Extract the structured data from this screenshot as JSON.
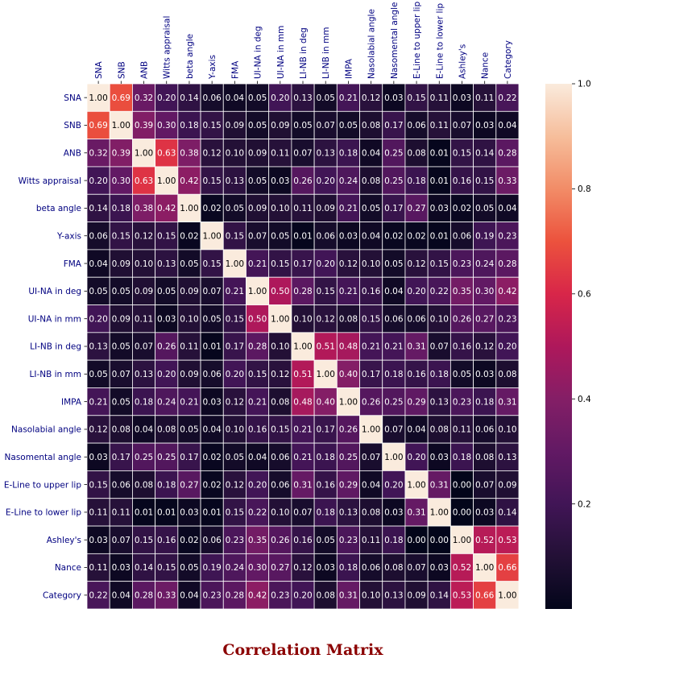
{
  "chart_data": {
    "type": "heatmap",
    "title": "Correlation Matrix",
    "labels": [
      "SNA",
      "SNB",
      "ANB",
      "Witts appraisal",
      "beta angle",
      "Y-axis",
      "FMA",
      "UI-NA in deg",
      "UI-NA in mm",
      "LI-NB in deg",
      "LI-NB in mm",
      "IMPA",
      "Nasolabial angle",
      "Nasomental angle",
      "E-Line to upper lip",
      "E-Line to lower lip",
      "Ashley's",
      "Nance",
      "Category"
    ],
    "matrix": [
      [
        1.0,
        0.69,
        0.32,
        0.2,
        0.14,
        0.06,
        0.04,
        0.05,
        0.2,
        0.13,
        0.05,
        0.21,
        0.12,
        0.03,
        0.15,
        0.11,
        0.03,
        0.11,
        0.22
      ],
      [
        0.69,
        1.0,
        0.39,
        0.3,
        0.18,
        0.15,
        0.09,
        0.05,
        0.09,
        0.05,
        0.07,
        0.05,
        0.08,
        0.17,
        0.06,
        0.11,
        0.07,
        0.03,
        0.04
      ],
      [
        0.32,
        0.39,
        1.0,
        0.63,
        0.38,
        0.12,
        0.1,
        0.09,
        0.11,
        0.07,
        0.13,
        0.18,
        0.04,
        0.25,
        0.08,
        0.01,
        0.15,
        0.14,
        0.28
      ],
      [
        0.2,
        0.3,
        0.63,
        1.0,
        0.42,
        0.15,
        0.13,
        0.05,
        0.03,
        0.26,
        0.2,
        0.24,
        0.08,
        0.25,
        0.18,
        0.01,
        0.16,
        0.15,
        0.33
      ],
      [
        0.14,
        0.18,
        0.38,
        0.42,
        1.0,
        0.02,
        0.05,
        0.09,
        0.1,
        0.11,
        0.09,
        0.21,
        0.05,
        0.17,
        0.27,
        0.03,
        0.02,
        0.05,
        0.04
      ],
      [
        0.06,
        0.15,
        0.12,
        0.15,
        0.02,
        1.0,
        0.15,
        0.07,
        0.05,
        0.01,
        0.06,
        0.03,
        0.04,
        0.02,
        0.02,
        0.01,
        0.06,
        0.19,
        0.23
      ],
      [
        0.04,
        0.09,
        0.1,
        0.13,
        0.05,
        0.15,
        1.0,
        0.21,
        0.15,
        0.17,
        0.2,
        0.12,
        0.1,
        0.05,
        0.12,
        0.15,
        0.23,
        0.24,
        0.28
      ],
      [
        0.05,
        0.05,
        0.09,
        0.05,
        0.09,
        0.07,
        0.21,
        1.0,
        0.5,
        0.28,
        0.15,
        0.21,
        0.16,
        0.04,
        0.2,
        0.22,
        0.35,
        0.3,
        0.42
      ],
      [
        0.2,
        0.09,
        0.11,
        0.03,
        0.1,
        0.05,
        0.15,
        0.5,
        1.0,
        0.1,
        0.12,
        0.08,
        0.15,
        0.06,
        0.06,
        0.1,
        0.26,
        0.27,
        0.23
      ],
      [
        0.13,
        0.05,
        0.07,
        0.26,
        0.11,
        0.01,
        0.17,
        0.28,
        0.1,
        1.0,
        0.51,
        0.48,
        0.21,
        0.21,
        0.31,
        0.07,
        0.16,
        0.12,
        0.2
      ],
      [
        0.05,
        0.07,
        0.13,
        0.2,
        0.09,
        0.06,
        0.2,
        0.15,
        0.12,
        0.51,
        1.0,
        0.4,
        0.17,
        0.18,
        0.16,
        0.18,
        0.05,
        0.03,
        0.08
      ],
      [
        0.21,
        0.05,
        0.18,
        0.24,
        0.21,
        0.03,
        0.12,
        0.21,
        0.08,
        0.48,
        0.4,
        1.0,
        0.26,
        0.25,
        0.29,
        0.13,
        0.23,
        0.18,
        0.31
      ],
      [
        0.12,
        0.08,
        0.04,
        0.08,
        0.05,
        0.04,
        0.1,
        0.16,
        0.15,
        0.21,
        0.17,
        0.26,
        1.0,
        0.07,
        0.04,
        0.08,
        0.11,
        0.06,
        0.1
      ],
      [
        0.03,
        0.17,
        0.25,
        0.25,
        0.17,
        0.02,
        0.05,
        0.04,
        0.06,
        0.21,
        0.18,
        0.25,
        0.07,
        1.0,
        0.2,
        0.03,
        0.18,
        0.08,
        0.13
      ],
      [
        0.15,
        0.06,
        0.08,
        0.18,
        0.27,
        0.02,
        0.12,
        0.2,
        0.06,
        0.31,
        0.16,
        0.29,
        0.04,
        0.2,
        1.0,
        0.31,
        0.0,
        0.07,
        0.09
      ],
      [
        0.11,
        0.11,
        0.01,
        0.01,
        0.03,
        0.01,
        0.15,
        0.22,
        0.1,
        0.07,
        0.18,
        0.13,
        0.08,
        0.03,
        0.31,
        1.0,
        0.0,
        0.03,
        0.14
      ],
      [
        0.03,
        0.07,
        0.15,
        0.16,
        0.02,
        0.06,
        0.23,
        0.35,
        0.26,
        0.16,
        0.05,
        0.23,
        0.11,
        0.18,
        0.0,
        0.0,
        1.0,
        0.52,
        0.53
      ],
      [
        0.11,
        0.03,
        0.14,
        0.15,
        0.05,
        0.19,
        0.24,
        0.3,
        0.27,
        0.12,
        0.03,
        0.18,
        0.06,
        0.08,
        0.07,
        0.03,
        0.52,
        1.0,
        0.66
      ],
      [
        0.22,
        0.04,
        0.28,
        0.33,
        0.04,
        0.23,
        0.28,
        0.42,
        0.23,
        0.2,
        0.08,
        0.31,
        0.1,
        0.13,
        0.09,
        0.14,
        0.53,
        0.66,
        1.0
      ]
    ],
    "colorbar": {
      "vmin": 0.0,
      "vmax": 1.0,
      "ticks": [
        0.2,
        0.4,
        0.6,
        0.8,
        1.0
      ],
      "tick_labels": [
        "0.2",
        "0.4",
        "0.6",
        "0.8",
        "1.0"
      ]
    },
    "colormap": "rocket",
    "colors": {
      "label": "#000080",
      "title": "#8b0000",
      "cell_text_dark": "#000000",
      "cell_text_light": "#ffffff",
      "grid": "#ffffff"
    }
  }
}
